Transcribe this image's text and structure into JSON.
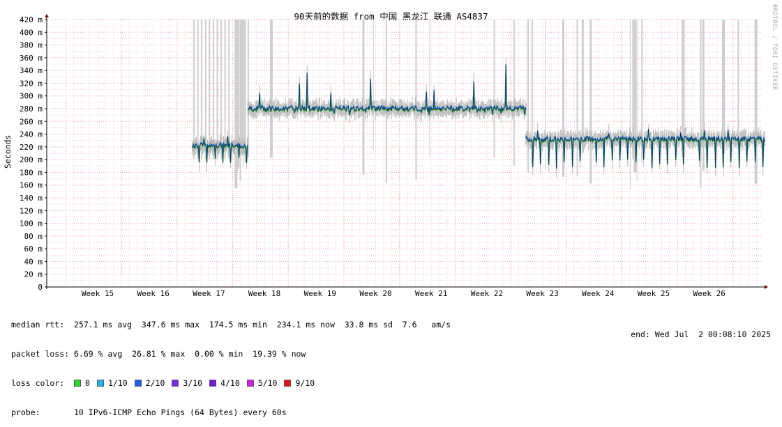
{
  "chart_data": {
    "type": "line",
    "title": "90天前的数据 from 中国 黑龙江 联通 AS4837",
    "ylabel": "Seconds",
    "ylim": [
      0,
      420
    ],
    "y_ticks": [
      "0",
      "20 m",
      "40 m",
      "60 m",
      "80 m",
      "100 m",
      "120 m",
      "140 m",
      "160 m",
      "180 m",
      "200 m",
      "220 m",
      "240 m",
      "260 m",
      "280 m",
      "300 m",
      "320 m",
      "340 m",
      "360 m",
      "380 m",
      "400 m",
      "420 m"
    ],
    "x_ticks": [
      "Week 15",
      "Week 16",
      "Week 17",
      "Week 18",
      "Week 19",
      "Week 20",
      "Week 21",
      "Week 22",
      "Week 23",
      "Week 24",
      "Week 25",
      "Week 26"
    ],
    "grid": true,
    "series": [
      {
        "name": "median rtt",
        "segments": [
          {
            "x_start": 16.7,
            "x_end": 17.7,
            "baseline_ms": 222,
            "dip_ms": 190,
            "spike_ms": 245
          },
          {
            "x_start": 17.7,
            "x_end": 22.7,
            "baseline_ms": 280,
            "dip_ms": 270,
            "spike_ms": 350
          },
          {
            "x_start": 22.7,
            "x_end": 27.0,
            "baseline_ms": 232,
            "dip_ms": 185,
            "spike_ms": 248
          }
        ]
      }
    ],
    "loss_colors": [
      {
        "label": "0",
        "color": "#22dd22"
      },
      {
        "label": "1/10",
        "color": "#1bb8ee"
      },
      {
        "label": "2/10",
        "color": "#1e5fea"
      },
      {
        "label": "3/10",
        "color": "#7a2ae6"
      },
      {
        "label": "4/10",
        "color": "#7418dd"
      },
      {
        "label": "5/10",
        "color": "#e01bf0"
      },
      {
        "label": "9/10",
        "color": "#f01010"
      }
    ]
  },
  "watermark": "RRDTOOL / TOBI OETIKER",
  "stats": {
    "median_rtt": "median rtt:  257.1 ms avg  347.6 ms max  174.5 ms min  234.1 ms now  33.8 ms sd  7.6   am/s",
    "packet_loss": "packet loss: 6.69 % avg  26.81 % max  0.00 % min  19.39 % now",
    "loss_color_label": "loss color:",
    "probe": "probe:       10 IPv6-ICMP Echo Pings (64 Bytes) every 60s",
    "end": "end: Wed Jul  2 00:08:10 2025"
  }
}
